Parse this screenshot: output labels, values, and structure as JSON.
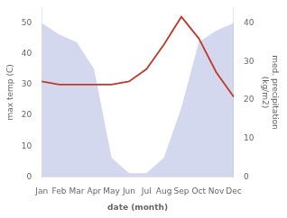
{
  "chart_data": {
    "type": "line",
    "categories": [
      "Jan",
      "Feb",
      "Mar",
      "Apr",
      "May",
      "Jun",
      "Jul",
      "Aug",
      "Sep",
      "Oct",
      "Nov",
      "Dec"
    ],
    "xlabel": "date (month)",
    "ylabel": "max temp (C)",
    "y2label": "med. precipitation\n(kg/m2)",
    "series": [
      {
        "type": "area",
        "color": "#b0b8e0",
        "axis": "y2",
        "values": [
          40,
          37,
          35,
          28,
          5,
          1,
          1,
          5,
          18,
          35,
          38,
          40
        ]
      },
      {
        "type": "line",
        "color": "#c0392b",
        "values": [
          31,
          30,
          30,
          30,
          30,
          31,
          35,
          43,
          52,
          45,
          34,
          26
        ]
      }
    ],
    "ylim": [
      0,
      55
    ],
    "yticks": [
      0,
      10,
      20,
      30,
      40,
      50
    ],
    "y2lim": [
      0,
      44
    ],
    "y2ticks": [
      0,
      10,
      20,
      30,
      40
    ],
    "grid": false
  }
}
